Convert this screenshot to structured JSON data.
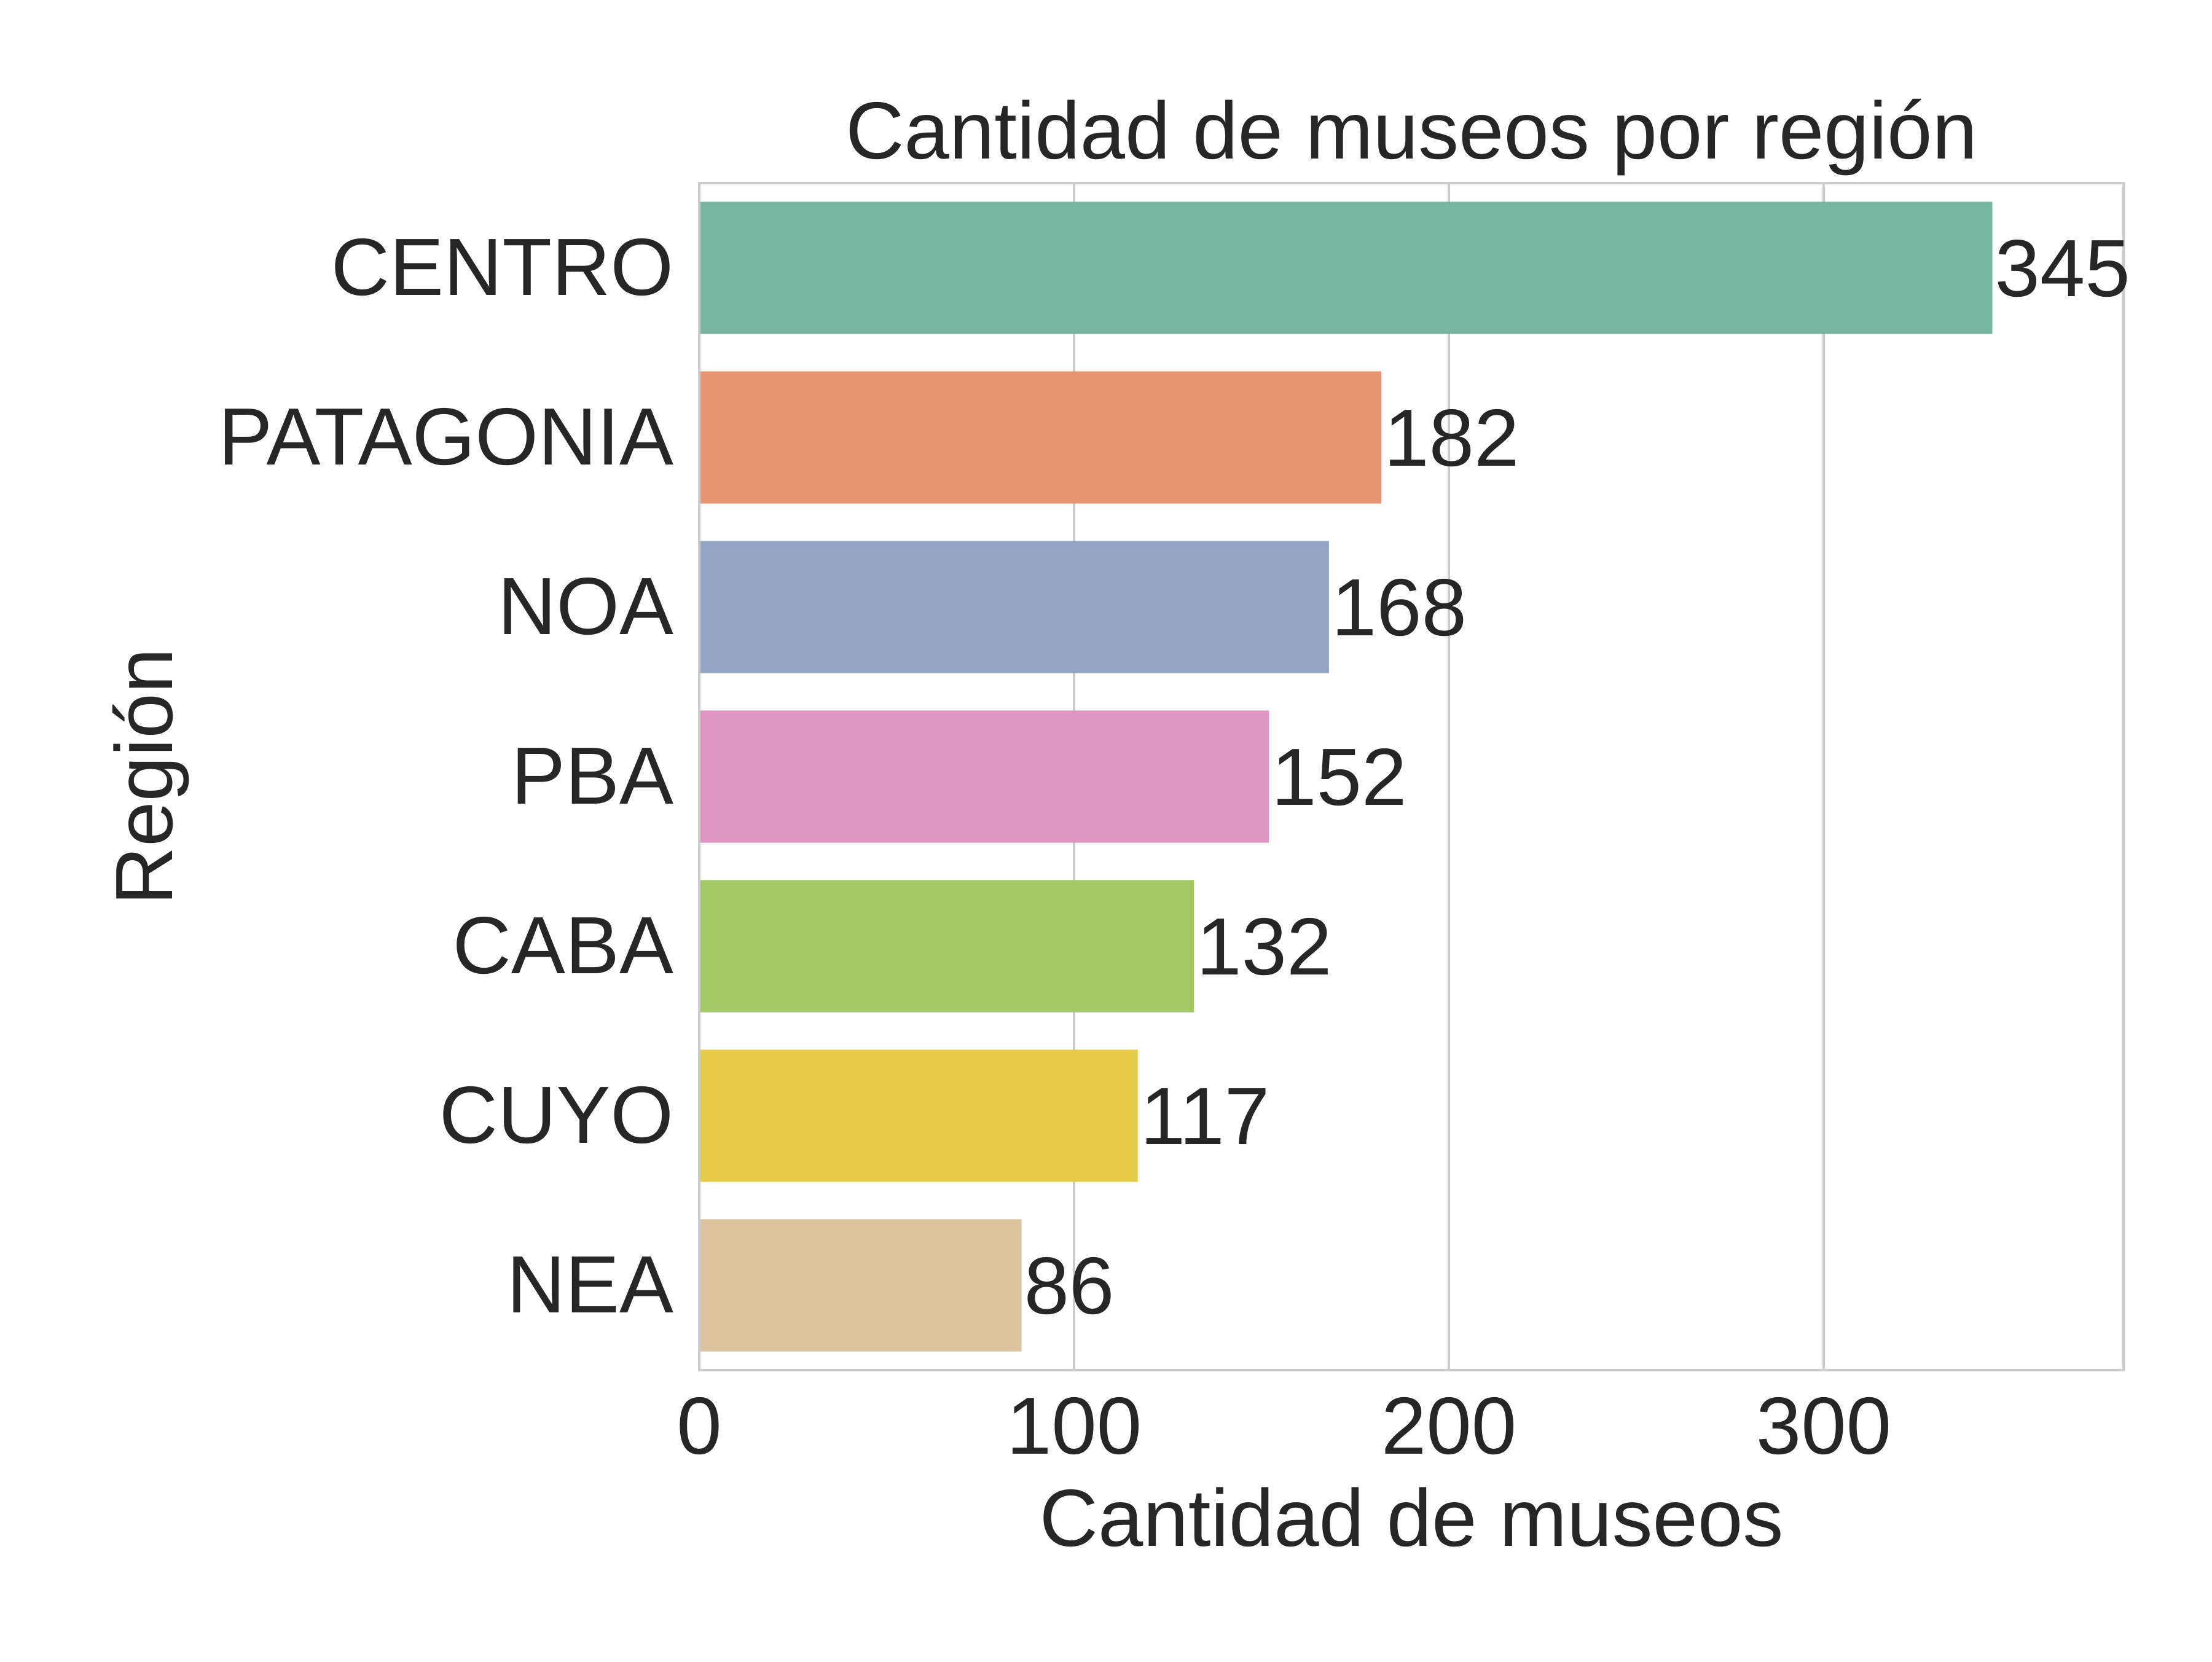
{
  "chart_data": {
    "type": "bar",
    "orientation": "horizontal",
    "title": "Cantidad de museos por región",
    "xlabel": "Cantidad de museos",
    "ylabel": "Región",
    "categories": [
      "CENTRO",
      "PATAGONIA",
      "NOA",
      "PBA",
      "CABA",
      "CUYO",
      "NEA"
    ],
    "values": [
      345,
      182,
      168,
      152,
      132,
      117,
      86
    ],
    "value_labels": [
      "345",
      "182",
      "168",
      "152",
      "132",
      "117",
      "86"
    ],
    "colors": [
      "#76b6a1",
      "#e99674",
      "#94a5c3",
      "#dc96c0",
      "#a3c966",
      "#e5cb48",
      "#dbc49f"
    ],
    "xlim": [
      0,
      380
    ],
    "xticks": [
      0,
      100,
      200,
      300
    ],
    "xtick_labels": [
      "0",
      "100",
      "200",
      "300"
    ],
    "grid": "vertical",
    "legend": "none"
  }
}
